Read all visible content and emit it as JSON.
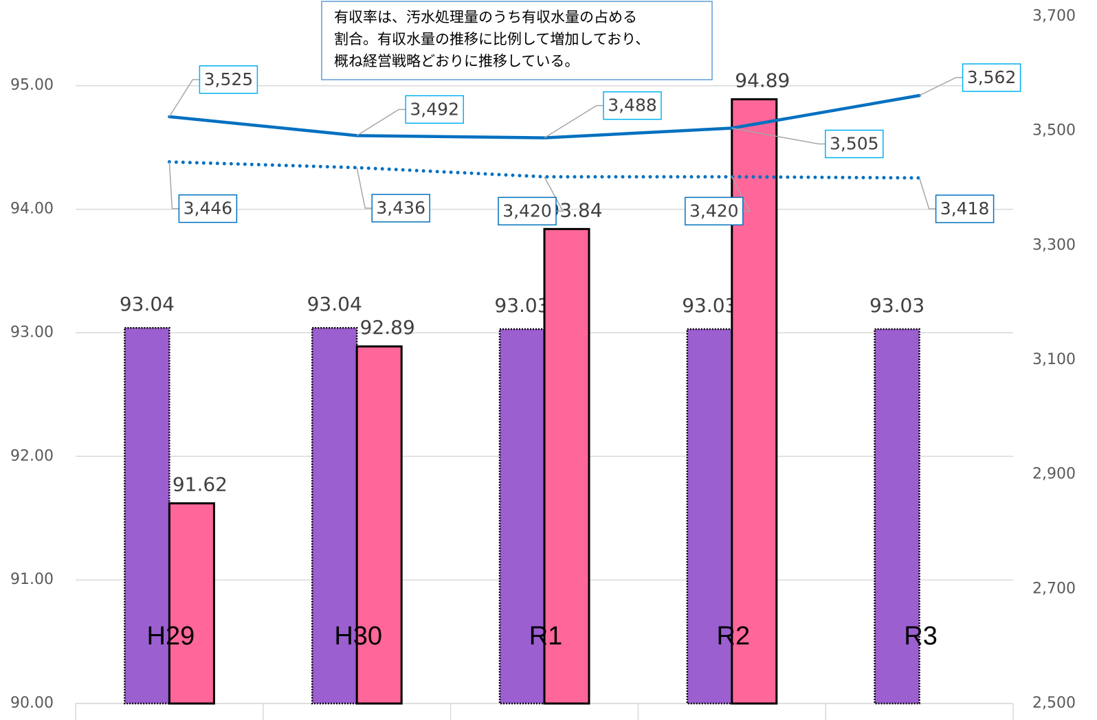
{
  "chart_data": {
    "type": "bar",
    "categories": [
      "H29",
      "H30",
      "R1",
      "R2",
      "R3"
    ],
    "annotation": [
      "有収率は、汚水処理量のうち有収水量の占める",
      "割合。有収水量の推移に比例して増加しており、",
      "概ね経営戦略どおりに推移している。"
    ],
    "ylim": [
      90,
      95.56
    ],
    "yticks": [
      {
        "value": 90,
        "label": "90.00"
      },
      {
        "value": 91,
        "label": "91.00"
      },
      {
        "value": 92,
        "label": "92.00"
      },
      {
        "value": 93,
        "label": "93.00"
      },
      {
        "value": 94,
        "label": "94.00"
      },
      {
        "value": 95,
        "label": "95.00"
      }
    ],
    "y2lim": [
      2500,
      3700
    ],
    "y2ticks": [
      {
        "value": 2500,
        "label": "2,500"
      },
      {
        "value": 2700,
        "label": "2,700"
      },
      {
        "value": 2900,
        "label": "2,900"
      },
      {
        "value": 3100,
        "label": "3,100"
      },
      {
        "value": 3300,
        "label": "3,300"
      },
      {
        "value": 3500,
        "label": "3,500"
      },
      {
        "value": 3700,
        "label": "3,700"
      }
    ],
    "grid": true,
    "series": [
      {
        "type": "bar",
        "color": "#9b5fcf",
        "line_style": "dotted",
        "values": [
          93.04,
          93.04,
          93.03,
          93.03,
          93.03
        ]
      },
      {
        "type": "bar",
        "color": "#ff6699",
        "line_style": "solid",
        "values": [
          91.62,
          92.89,
          93.84,
          94.89,
          null
        ]
      },
      {
        "type": "line",
        "axis": "y2",
        "color": "#0070c0",
        "line_style": "solid",
        "values": [
          3525,
          3492,
          3488,
          3505,
          3562
        ],
        "value_labels": [
          "3,525",
          "3,492",
          "3,488",
          "3,505",
          "3,562"
        ]
      },
      {
        "type": "line",
        "axis": "y2",
        "color": "#0070c0",
        "line_style": "dotted",
        "values": [
          3446,
          3436,
          3420,
          3420,
          3418
        ],
        "value_labels": [
          "3,446",
          "3,436",
          "3,420",
          "3,420",
          "3,418"
        ]
      }
    ]
  }
}
